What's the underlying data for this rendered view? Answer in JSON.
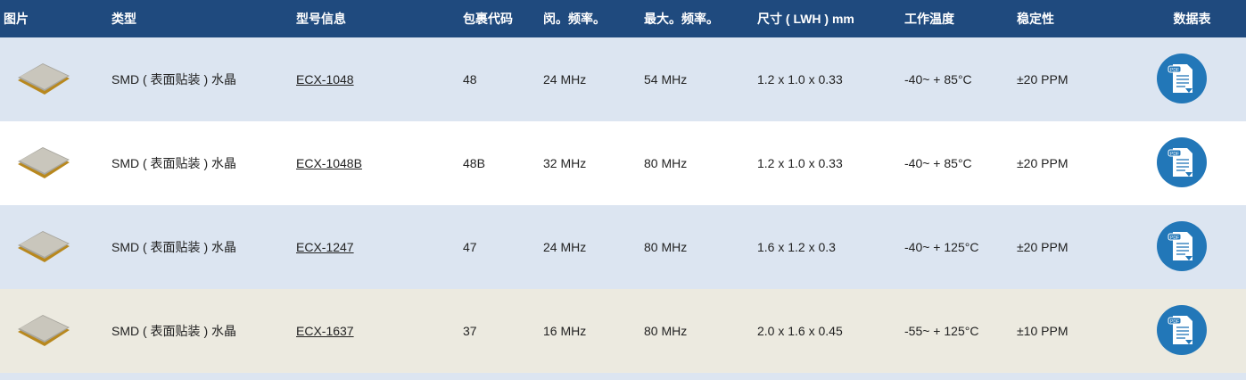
{
  "header": [
    "图片",
    "类型",
    "型号信息",
    "包裹代码",
    "闵。频率。",
    "最大。频率。",
    "尺寸 ( LWH ) mm",
    "工作温度",
    "稳定性",
    "数据表"
  ],
  "rows": [
    {
      "type": "SMD ( 表面贴装 ) 水晶",
      "model": "ECX-1048",
      "package": "48",
      "min_freq": "24 MHz",
      "max_freq": "54 MHz",
      "size": "1.2 x 1.0 x 0.33",
      "temp": "-40~ + 85°C",
      "stability": "±20 PPM"
    },
    {
      "type": "SMD ( 表面贴装 ) 水晶",
      "model": "ECX-1048B",
      "package": "48B",
      "min_freq": "32 MHz",
      "max_freq": "80 MHz",
      "size": "1.2 x 1.0 x 0.33",
      "temp": "-40~ + 85°C",
      "stability": "±20 PPM"
    },
    {
      "type": "SMD ( 表面贴装 ) 水晶",
      "model": "ECX-1247",
      "package": "47",
      "min_freq": "24 MHz",
      "max_freq": "80 MHz",
      "size": "1.6 x 1.2 x 0.3",
      "temp": "-40~ + 125°C",
      "stability": "±20 PPM"
    },
    {
      "type": "SMD ( 表面贴装 ) 水晶",
      "model": "ECX-1637",
      "package": "37",
      "min_freq": "16 MHz",
      "max_freq": "80 MHz",
      "size": "2.0 x 1.6 x 0.45",
      "temp": "-55~ + 125°C",
      "stability": "±10 PPM"
    }
  ],
  "pdf_label": "PDF",
  "colors": {
    "header": "#1f4a7e",
    "row_alt": "#dce5f1",
    "row_hover": "#eceae0",
    "pdf_icon": "#2277b8"
  }
}
